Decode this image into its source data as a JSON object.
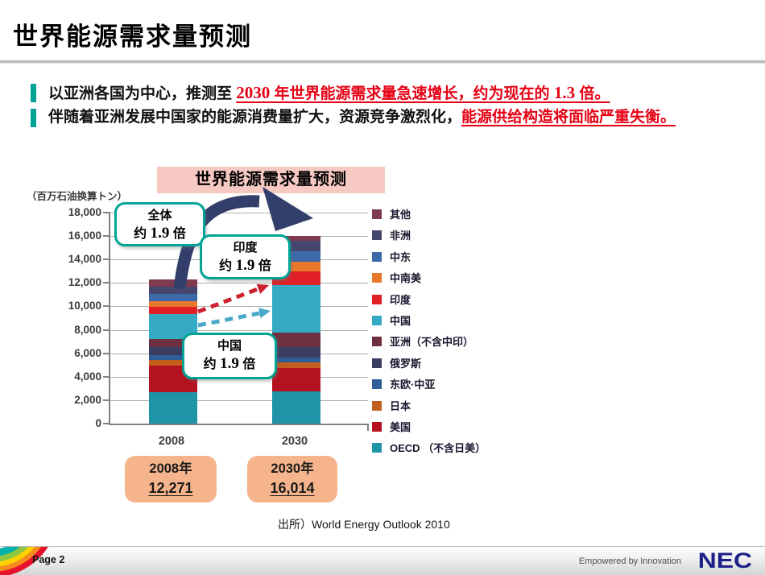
{
  "slide_title": "世界能源需求量预测",
  "bullets": {
    "b1_lead": "以亚洲各国为中心，推测至 ",
    "b1_num1": "2030",
    "b1_red1": " 年世界能源需求量急速增长，约为现在的 ",
    "b1_num2": "1.3",
    "b1_red2": " 倍。",
    "b2_lead": "伴随着亚洲发展中国家的能源消费量扩大，资源竞争激烈化，",
    "b2_red": "能源供给构造将面临严重失衡。"
  },
  "chart_data": {
    "type": "bar",
    "stacked": true,
    "title": "世界能源需求量预测",
    "unit_label": "（百万石油换算トン）",
    "categories": [
      "2008",
      "2030"
    ],
    "ylim": [
      0,
      18000
    ],
    "yticks": [
      0,
      2000,
      4000,
      6000,
      8000,
      10000,
      12000,
      14000,
      16000,
      18000
    ],
    "grid": "horizontal",
    "legend_position": "right",
    "series": [
      {
        "name": "OECD （不含日美）",
        "color": "#1f93a8",
        "values": [
          2650,
          2740
        ]
      },
      {
        "name": "美国",
        "color": "#b5121f",
        "values": [
          2281,
          2000
        ]
      },
      {
        "name": "日本",
        "color": "#c25f1e",
        "values": [
          496,
          470
        ]
      },
      {
        "name": "东欧·中亚",
        "color": "#2f5d98",
        "values": [
          430,
          460
        ]
      },
      {
        "name": "俄罗斯",
        "color": "#3a3c62",
        "values": [
          687,
          870
        ]
      },
      {
        "name": "亚洲（不含中印）",
        "color": "#6e2f40",
        "values": [
          640,
          1250
        ]
      },
      {
        "name": "中国",
        "color": "#35aac3",
        "values": [
          2131,
          4000
        ]
      },
      {
        "name": "印度",
        "color": "#e01f26",
        "values": [
          620,
          1180
        ]
      },
      {
        "name": "中南美",
        "color": "#e8782a",
        "values": [
          510,
          850
        ]
      },
      {
        "name": "中东",
        "color": "#3c69a8",
        "values": [
          600,
          920
        ]
      },
      {
        "name": "非洲",
        "color": "#44466e",
        "values": [
          655,
          890
        ]
      },
      {
        "name": "其他",
        "color": "#7e3a4e",
        "values": [
          571,
          384
        ]
      }
    ],
    "totals": [
      12271,
      16014
    ],
    "total_boxes": [
      {
        "year": "2008年",
        "value": "12,271"
      },
      {
        "year": "2030年",
        "value": "16,014"
      }
    ],
    "annotations": [
      {
        "target": "全体",
        "prefix": "约",
        "value": "1.9",
        "suffix": "倍"
      },
      {
        "target": "印度",
        "prefix": "约",
        "value": "1.9",
        "suffix": "倍"
      },
      {
        "target": "中国",
        "prefix": "约",
        "value": "1.9",
        "suffix": "倍"
      }
    ],
    "source": "出所）World Energy Outlook 2010"
  },
  "footer": {
    "page_label": "Page 2",
    "tagline": "Empowered by Innovation",
    "logo_text": "NEC"
  },
  "colors": {
    "accent_teal": "#00a395",
    "red_text": "#e60014",
    "banner_pink": "#f7c9c3",
    "total_box_salmon": "#f5b48b",
    "arrow_navy": "#333f6b",
    "arrow_red": "#cf2030",
    "arrow_cyan": "#4aa8c8",
    "nec_blue": "#1d2088"
  }
}
